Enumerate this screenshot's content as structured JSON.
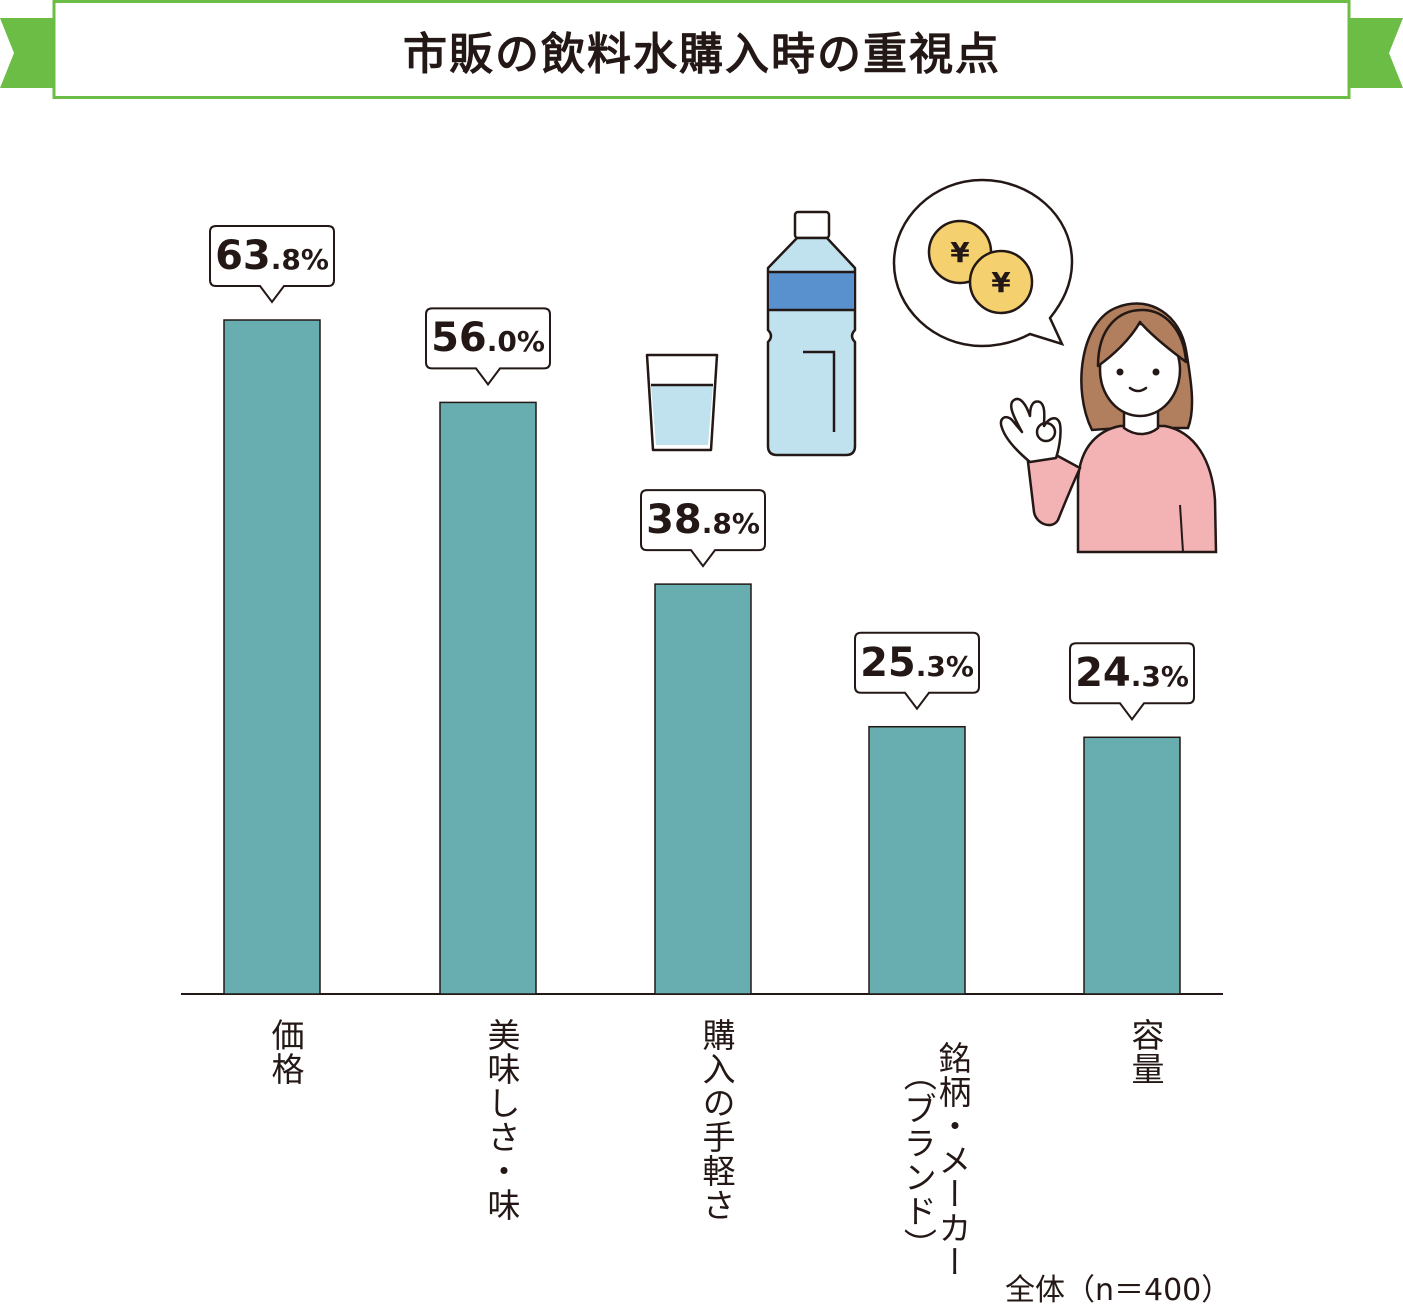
{
  "header": {
    "title": "市販の飲料水購入時の重視点"
  },
  "chart_data": {
    "type": "bar",
    "title": "市販の飲料水購入時の重視点",
    "categories": [
      "価格",
      "美味しさ・味",
      "購入の手軽さ",
      "銘柄・メーカー（ブランド）",
      "容量"
    ],
    "category_labels": [
      {
        "main": "価格",
        "sub": ""
      },
      {
        "main": "美味しさ・味",
        "sub": ""
      },
      {
        "main": "購入の手軽さ",
        "sub": ""
      },
      {
        "main": "銘柄・メーカー",
        "sub": "（ブランド）"
      },
      {
        "main": "容量",
        "sub": ""
      }
    ],
    "values": [
      63.8,
      56.0,
      38.8,
      25.3,
      24.3
    ],
    "value_labels": [
      {
        "int": "63",
        "dec": ".8%"
      },
      {
        "int": "56",
        "dec": ".0%"
      },
      {
        "int": "38",
        "dec": ".8%"
      },
      {
        "int": "25",
        "dec": ".3%"
      },
      {
        "int": "24",
        "dec": ".3%"
      }
    ],
    "unit": "%",
    "ylim": [
      0,
      70
    ],
    "grid": false,
    "colors": {
      "bar": "#68aeb1",
      "bar_stroke": "#231815",
      "banner": "#6cbd45"
    }
  },
  "footnote": "全体（n＝400）",
  "illustration": {
    "coin_symbol": "¥",
    "icons": [
      "water-glass-icon",
      "water-bottle-icon",
      "woman-ok-sign-icon",
      "coins-speech-bubble-icon"
    ]
  }
}
